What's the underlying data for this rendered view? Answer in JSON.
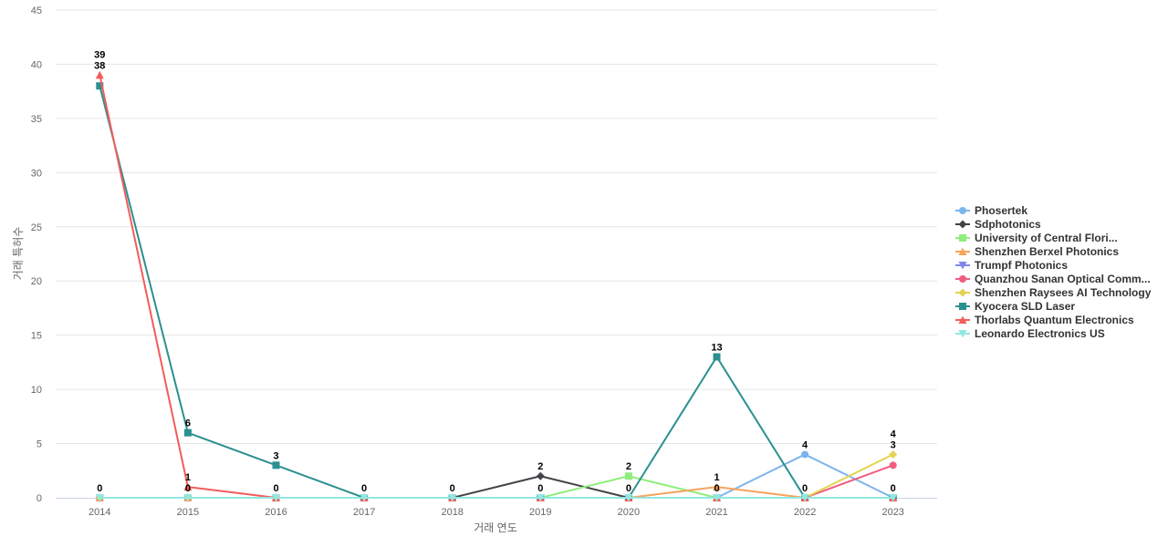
{
  "chart_data": {
    "type": "line",
    "xlabel": "거래 연도",
    "ylabel": "거래 특허수",
    "ylim": [
      0,
      45
    ],
    "yticks": [
      "0",
      "5",
      "10",
      "15",
      "20",
      "25",
      "30",
      "35",
      "40",
      "45"
    ],
    "categories": [
      "2014",
      "2015",
      "2016",
      "2017",
      "2018",
      "2019",
      "2020",
      "2021",
      "2022",
      "2023"
    ],
    "grid": true,
    "legend_position": "right",
    "series": [
      {
        "name": "Phosertek",
        "color": "#7cb5ec",
        "marker": "circle",
        "values": [
          0,
          0,
          0,
          0,
          0,
          0,
          0,
          0,
          4,
          0
        ]
      },
      {
        "name": "Sdphotonics",
        "color": "#434348",
        "marker": "diamond",
        "values": [
          0,
          0,
          0,
          0,
          0,
          2,
          0,
          0,
          0,
          0
        ]
      },
      {
        "name": "University of Central Flori...",
        "color": "#90ed7d",
        "marker": "square",
        "values": [
          0,
          0,
          0,
          0,
          0,
          0,
          2,
          0,
          0,
          0
        ]
      },
      {
        "name": "Shenzhen Berxel Photonics",
        "color": "#f7a35c",
        "marker": "triangle",
        "values": [
          0,
          0,
          0,
          0,
          0,
          0,
          0,
          1,
          0,
          0
        ]
      },
      {
        "name": "Trumpf Photonics",
        "color": "#8085e9",
        "marker": "triangle-down",
        "values": [
          0,
          0,
          0,
          0,
          0,
          0,
          0,
          0,
          0,
          0
        ]
      },
      {
        "name": "Quanzhou Sanan Optical Comm...",
        "color": "#f15c80",
        "marker": "circle",
        "values": [
          0,
          0,
          0,
          0,
          0,
          0,
          0,
          0,
          0,
          3
        ]
      },
      {
        "name": "Shenzhen Raysees AI Technology",
        "color": "#e4d354",
        "marker": "diamond",
        "values": [
          0,
          0,
          0,
          0,
          0,
          0,
          0,
          0,
          0,
          4
        ]
      },
      {
        "name": "Kyocera SLD Laser",
        "color": "#2b908f",
        "marker": "square",
        "values": [
          38,
          6,
          3,
          0,
          0,
          0,
          0,
          13,
          0,
          0
        ]
      },
      {
        "name": "Thorlabs Quantum Electronics",
        "color": "#f45b5b",
        "marker": "triangle",
        "values": [
          39,
          1,
          0,
          0,
          0,
          0,
          0,
          0,
          0,
          0
        ]
      },
      {
        "name": "Leonardo Electronics US",
        "color": "#91e8e1",
        "marker": "triangle-down",
        "values": [
          0,
          0,
          0,
          0,
          0,
          0,
          0,
          0,
          0,
          0
        ]
      }
    ],
    "data_labels": [
      {
        "x": "2014",
        "text": "39",
        "level": 39,
        "stack": 1
      },
      {
        "x": "2014",
        "text": "38",
        "level": 39,
        "stack": 0
      },
      {
        "x": "2014",
        "text": "0",
        "level": 0,
        "stack": 0
      },
      {
        "x": "2015",
        "text": "6",
        "level": 6,
        "stack": 0
      },
      {
        "x": "2015",
        "text": "1",
        "level": 1,
        "stack": 0
      },
      {
        "x": "2015",
        "text": "0",
        "level": 0,
        "stack": 0
      },
      {
        "x": "2016",
        "text": "3",
        "level": 3,
        "stack": 0
      },
      {
        "x": "2016",
        "text": "0",
        "level": 0,
        "stack": 0
      },
      {
        "x": "2017",
        "text": "0",
        "level": 0,
        "stack": 0
      },
      {
        "x": "2018",
        "text": "0",
        "level": 0,
        "stack": 0
      },
      {
        "x": "2019",
        "text": "2",
        "level": 2,
        "stack": 0
      },
      {
        "x": "2019",
        "text": "0",
        "level": 0,
        "stack": 0
      },
      {
        "x": "2020",
        "text": "2",
        "level": 2,
        "stack": 0
      },
      {
        "x": "2020",
        "text": "0",
        "level": 0,
        "stack": 0
      },
      {
        "x": "2021",
        "text": "13",
        "level": 13,
        "stack": 0
      },
      {
        "x": "2021",
        "text": "1",
        "level": 1,
        "stack": 0
      },
      {
        "x": "2021",
        "text": "0",
        "level": 0,
        "stack": 0
      },
      {
        "x": "2022",
        "text": "4",
        "level": 4,
        "stack": 0
      },
      {
        "x": "2022",
        "text": "0",
        "level": 0,
        "stack": 0
      },
      {
        "x": "2023",
        "text": "4",
        "level": 4,
        "stack": 1
      },
      {
        "x": "2023",
        "text": "3",
        "level": 4,
        "stack": 0
      },
      {
        "x": "2023",
        "text": "0",
        "level": 0,
        "stack": 0
      }
    ]
  }
}
